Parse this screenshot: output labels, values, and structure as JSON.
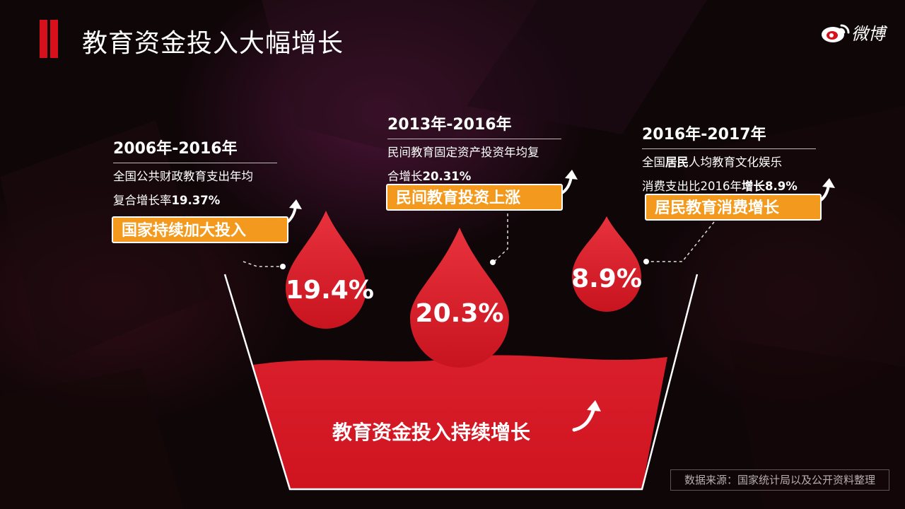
{
  "header": {
    "title": "教育资金投入大幅增长",
    "logo_text": "微博"
  },
  "colors": {
    "accent_red": "#d7101c",
    "drop_red": "#d91f2b",
    "tag_orange": "#f39a1e"
  },
  "blocks": [
    {
      "period": "2006年-2016年",
      "desc_line1": "全国公共财政教育支出年均",
      "desc_line2_prefix": "复合增长率",
      "desc_line2_value": "19.37%",
      "tag": "国家持续加大投入",
      "drop_value": "19.4%"
    },
    {
      "period": "2013年-2016年",
      "desc_line1": "民间教育固定资产投资年均复",
      "desc_line2_prefix": "合增长",
      "desc_line2_value": "20.31%",
      "tag": "民间教育投资上涨",
      "drop_value": "20.3%"
    },
    {
      "period": "2016年-2017年",
      "desc_line1_a": "全国",
      "desc_line1_b": "居民",
      "desc_line1_c": "人均教育文化娱乐",
      "desc_line2_prefix": "消费支出比2016年",
      "desc_line2_value": "增长8.9%",
      "tag": "居民教育消费增长",
      "drop_value": "8.9%"
    }
  ],
  "basin": {
    "label": "教育资金投入持续增长"
  },
  "footer": {
    "source": "数据来源：国家统计局以及公开资料整理"
  }
}
